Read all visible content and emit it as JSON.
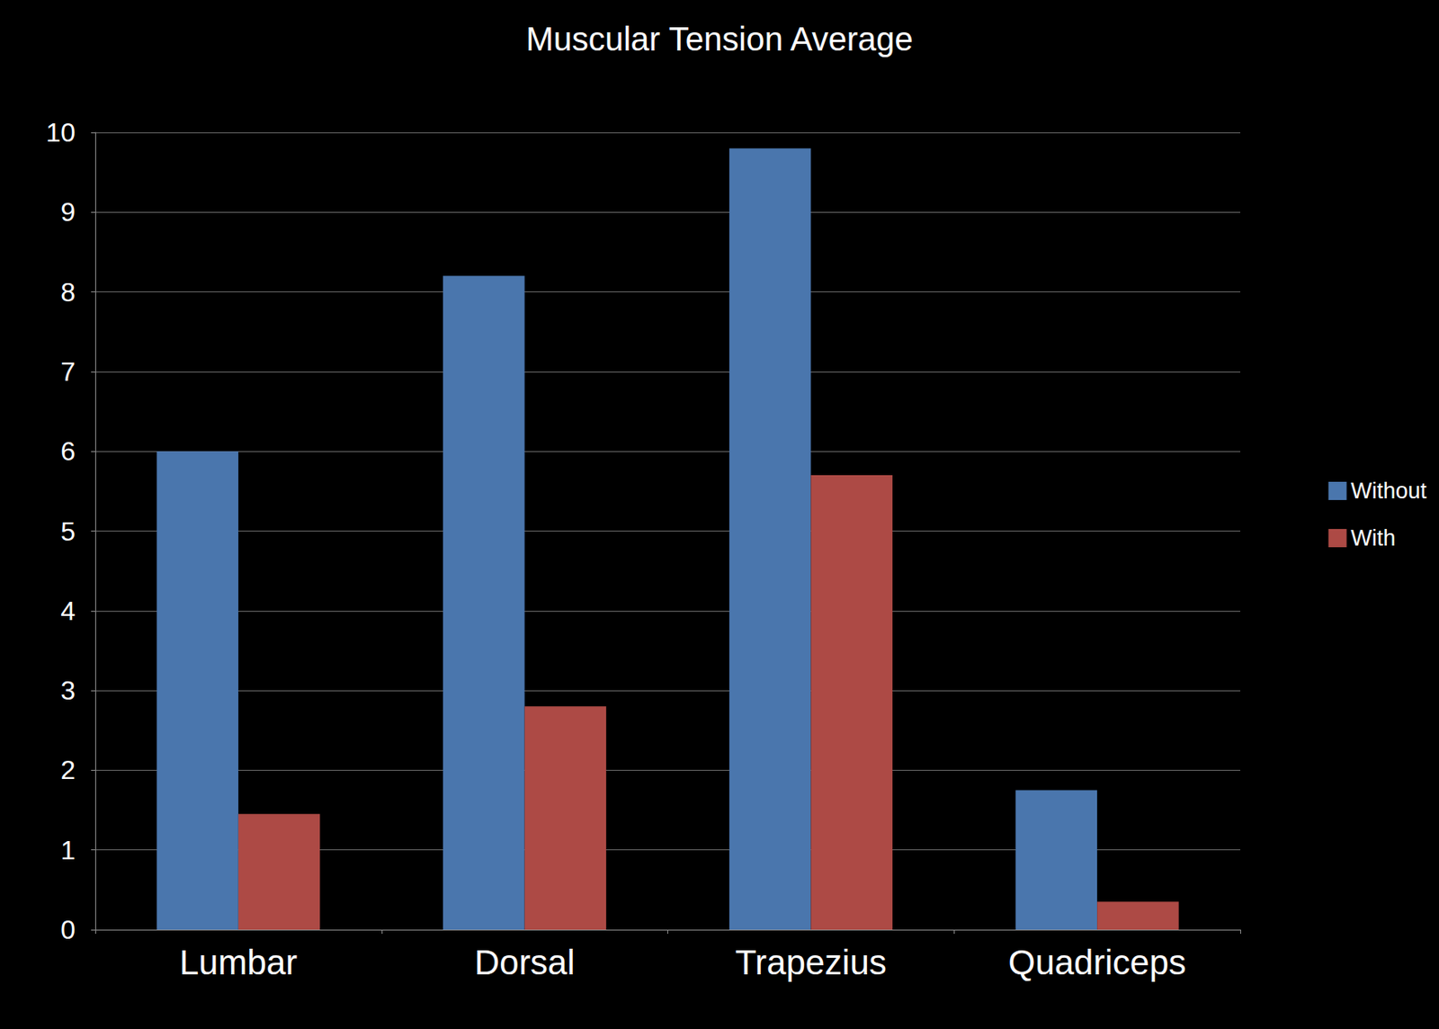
{
  "chart_data": {
    "type": "bar",
    "title": "Muscular Tension Average",
    "categories": [
      "Lumbar",
      "Dorsal",
      "Trapezius",
      "Quadriceps"
    ],
    "series": [
      {
        "name": "Without",
        "color": "#4a76ad",
        "values": [
          6.0,
          8.2,
          9.8,
          1.75
        ]
      },
      {
        "name": "With",
        "color": "#ad4a45",
        "values": [
          1.45,
          2.8,
          5.7,
          0.35
        ]
      }
    ],
    "ylim": [
      0,
      10
    ],
    "yticks": [
      0,
      1,
      2,
      3,
      4,
      5,
      6,
      7,
      8,
      9,
      10
    ],
    "grid": true,
    "legend": "right"
  }
}
